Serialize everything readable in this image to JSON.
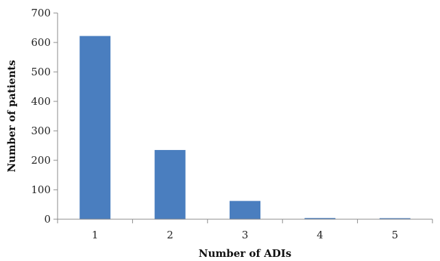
{
  "chart_data": {
    "type": "bar",
    "title": "",
    "xlabel": "Number of ADIs",
    "ylabel": "Number of patients",
    "categories": [
      "1",
      "2",
      "3",
      "4",
      "5"
    ],
    "values": [
      622,
      235,
      62,
      4,
      3
    ],
    "ylim": [
      0,
      700
    ],
    "yticks": [
      "0",
      "100",
      "200",
      "300",
      "400",
      "500",
      "600",
      "700"
    ],
    "grid": false,
    "legend": "none",
    "bar_color": "#4a7ebf"
  }
}
